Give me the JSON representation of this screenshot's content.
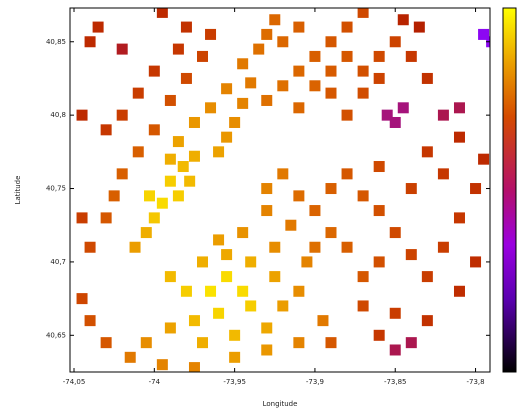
{
  "chart_data": {
    "type": "scatter",
    "x_label": "Longitude",
    "y_label": "Latitude",
    "xlim": [
      -74.0525,
      -73.791
    ],
    "ylim": [
      40.625,
      40.873
    ],
    "xticks": [
      {
        "value": -74.05,
        "label": "-74,05"
      },
      -74,
      {
        "value": -73.95,
        "label": "-73,95"
      },
      {
        "value": -73.9,
        "label": "-73,9"
      },
      {
        "value": -73.85,
        "label": "-73,85"
      },
      {
        "value": -73.8,
        "label": "-73,8"
      }
    ],
    "yticks": [
      {
        "value": 40.65,
        "label": "40,65"
      },
      {
        "value": 40.7,
        "label": "40,7"
      },
      {
        "value": 40.75,
        "label": "40,75"
      },
      {
        "value": 40.8,
        "label": "40,8"
      },
      {
        "value": 40.85,
        "label": "40,85"
      }
    ],
    "grid": false,
    "x": [
      -74.012,
      -74.005,
      -74.0,
      -73.995,
      -73.985,
      -74.003,
      -73.99,
      -73.978,
      -73.982,
      -73.99,
      -73.975,
      -73.985,
      -73.96,
      -73.955,
      -73.975,
      -73.95,
      -73.965,
      -73.945,
      -73.955,
      -73.94,
      -73.945,
      -73.935,
      -73.93,
      -73.925,
      -73.99,
      -73.98,
      -73.965,
      -73.955,
      -73.945,
      -73.94,
      -73.96,
      -73.975,
      -73.99,
      -74.005,
      -74.015,
      -73.995,
      -73.97,
      -73.95,
      -73.93,
      -73.92,
      -73.91,
      -73.925,
      -73.94,
      -73.955,
      -73.97,
      -73.93,
      -73.91,
      -73.95,
      -73.975,
      -73.895,
      -73.905,
      -73.925,
      -73.945,
      -73.96,
      -74.03,
      -74.04,
      -74.045,
      -73.93,
      -73.92,
      -73.91,
      -73.9,
      -73.89,
      -73.88,
      -73.87,
      -73.86,
      -73.85,
      -73.84,
      -73.83,
      -73.82,
      -73.81,
      -73.8,
      -73.82,
      -73.84,
      -73.86,
      -73.87,
      -73.88,
      -73.89,
      -73.9,
      -73.915,
      -73.93,
      -73.87,
      -73.85,
      -73.83,
      -73.86,
      -73.89,
      -73.8,
      -73.81,
      -73.795,
      -73.81,
      -73.83,
      -73.86,
      -73.85,
      -73.84,
      -73.93,
      -73.92,
      -73.91,
      -73.9,
      -73.89,
      -73.88,
      -73.87,
      -73.9,
      -73.89,
      -73.88,
      -73.87,
      -73.86,
      -73.85,
      -73.91,
      -73.92,
      -73.89,
      -73.87,
      -73.86,
      -73.84,
      -73.83,
      -73.88,
      -73.91,
      -74.03,
      -74.025,
      -74.02,
      -74.01,
      -74.0,
      -73.99,
      -73.98,
      -73.97,
      -73.965,
      -74.04,
      -74.045,
      -74.04,
      -74.035,
      -74.03,
      -74.02,
      -74.01,
      -74.0,
      -73.985,
      -73.98,
      -73.995,
      -74.045,
      -73.79,
      -73.795,
      -73.855,
      -73.85,
      -73.845,
      -73.82,
      -73.81,
      -73.835,
      -73.845,
      -74.02
    ],
    "y": [
      40.71,
      40.72,
      40.73,
      40.74,
      40.745,
      40.745,
      40.755,
      40.755,
      40.765,
      40.77,
      40.772,
      40.782,
      40.775,
      40.785,
      40.795,
      40.795,
      40.805,
      40.808,
      40.818,
      40.822,
      40.835,
      40.845,
      40.855,
      40.865,
      40.69,
      40.68,
      40.68,
      40.69,
      40.68,
      40.67,
      40.665,
      40.66,
      40.655,
      40.645,
      40.635,
      40.63,
      40.645,
      40.65,
      40.655,
      40.67,
      40.68,
      40.69,
      40.7,
      40.705,
      40.7,
      40.64,
      40.645,
      40.635,
      40.628,
      40.66,
      40.7,
      40.71,
      40.72,
      40.715,
      40.645,
      40.66,
      40.675,
      40.75,
      40.76,
      40.745,
      40.735,
      40.75,
      40.76,
      40.745,
      40.735,
      40.72,
      40.705,
      40.69,
      40.71,
      40.73,
      40.75,
      40.76,
      40.75,
      40.7,
      40.69,
      40.71,
      40.72,
      40.71,
      40.725,
      40.735,
      40.67,
      40.665,
      40.66,
      40.65,
      40.645,
      40.7,
      40.68,
      40.77,
      40.785,
      40.775,
      40.765,
      40.64,
      40.645,
      40.81,
      40.82,
      40.83,
      40.84,
      40.85,
      40.86,
      40.87,
      40.82,
      40.83,
      40.84,
      40.83,
      40.84,
      40.85,
      40.86,
      40.85,
      40.815,
      40.815,
      40.825,
      40.84,
      40.825,
      40.8,
      40.805,
      40.73,
      40.745,
      40.76,
      40.775,
      40.79,
      40.81,
      40.825,
      40.84,
      40.855,
      40.71,
      40.73,
      40.85,
      40.86,
      40.79,
      40.8,
      40.815,
      40.83,
      40.845,
      40.86,
      40.87,
      40.8,
      40.85,
      40.855,
      40.8,
      40.795,
      40.805,
      40.8,
      40.805,
      40.86,
      40.865,
      40.845
    ],
    "c": [
      0.85,
      0.88,
      0.92,
      0.95,
      0.93,
      0.94,
      0.93,
      0.9,
      0.9,
      0.88,
      0.88,
      0.86,
      0.86,
      0.84,
      0.84,
      0.82,
      0.82,
      0.8,
      0.8,
      0.78,
      0.78,
      0.76,
      0.75,
      0.74,
      0.9,
      0.93,
      0.96,
      0.95,
      0.95,
      0.93,
      0.94,
      0.9,
      0.86,
      0.82,
      0.78,
      0.8,
      0.88,
      0.9,
      0.87,
      0.85,
      0.82,
      0.86,
      0.88,
      0.87,
      0.88,
      0.84,
      0.8,
      0.85,
      0.8,
      0.78,
      0.8,
      0.82,
      0.83,
      0.85,
      0.7,
      0.68,
      0.65,
      0.8,
      0.78,
      0.75,
      0.73,
      0.72,
      0.7,
      0.7,
      0.68,
      0.66,
      0.64,
      0.62,
      0.62,
      0.6,
      0.58,
      0.6,
      0.63,
      0.68,
      0.7,
      0.72,
      0.74,
      0.76,
      0.78,
      0.8,
      0.66,
      0.62,
      0.58,
      0.6,
      0.7,
      0.56,
      0.56,
      0.55,
      0.55,
      0.6,
      0.66,
      0.45,
      0.45,
      0.76,
      0.76,
      0.74,
      0.72,
      0.7,
      0.68,
      0.66,
      0.73,
      0.71,
      0.7,
      0.68,
      0.66,
      0.64,
      0.72,
      0.74,
      0.7,
      0.67,
      0.64,
      0.6,
      0.58,
      0.68,
      0.74,
      0.7,
      0.72,
      0.72,
      0.72,
      0.7,
      0.68,
      0.66,
      0.64,
      0.62,
      0.66,
      0.62,
      0.55,
      0.55,
      0.6,
      0.62,
      0.62,
      0.6,
      0.6,
      0.58,
      0.55,
      0.55,
      0.3,
      0.3,
      0.42,
      0.42,
      0.42,
      0.45,
      0.45,
      0.5,
      0.52,
      0.48
    ]
  }
}
